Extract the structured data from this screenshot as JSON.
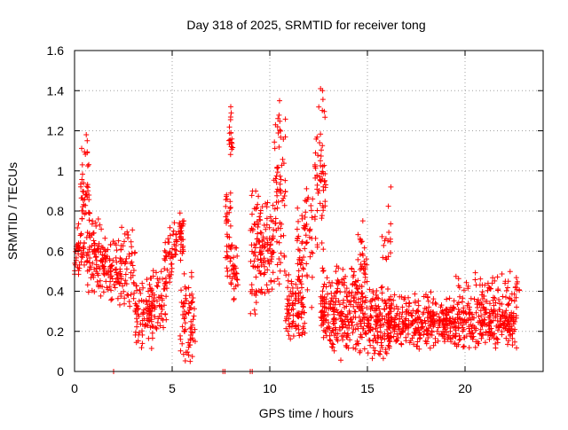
{
  "chart_data": {
    "type": "scatter",
    "title": "Day 318 of 2025, SRMTID for receiver tong",
    "xlabel": "GPS time / hours",
    "ylabel": "SRMTID / TECUs",
    "xlim": [
      0,
      24
    ],
    "ylim": [
      0,
      1.6
    ],
    "x_ticks": [
      0,
      5,
      10,
      15,
      20
    ],
    "y_ticks": [
      0,
      0.2,
      0.4,
      0.6,
      0.8,
      1.0,
      1.2,
      1.4,
      1.6
    ],
    "x_tick_labels": [
      "0",
      "5",
      "10",
      "15",
      "20"
    ],
    "y_tick_labels": [
      "0",
      "0.2",
      "0.4",
      "0.6",
      "0.8",
      "1",
      "1.2",
      "1.4",
      "1.6"
    ],
    "grid": true,
    "marker": "plus",
    "color": "#ff0000",
    "series": [
      {
        "name": "SRMTID",
        "clusters": [
          {
            "x": [
              0.0,
              0.5
            ],
            "y": [
              0.45,
              0.75
            ],
            "n": 40
          },
          {
            "x": [
              0.3,
              0.8
            ],
            "y": [
              0.6,
              1.18
            ],
            "n": 45
          },
          {
            "x": [
              0.6,
              1.4
            ],
            "y": [
              0.35,
              0.8
            ],
            "n": 70
          },
          {
            "x": [
              1.3,
              2.4
            ],
            "y": [
              0.3,
              0.7
            ],
            "n": 90
          },
          {
            "x": [
              2.3,
              3.2
            ],
            "y": [
              0.25,
              0.78
            ],
            "n": 60
          },
          {
            "x": [
              3.1,
              4.0
            ],
            "y": [
              0.05,
              0.5
            ],
            "n": 70
          },
          {
            "x": [
              3.8,
              4.7
            ],
            "y": [
              0.15,
              0.55
            ],
            "n": 70
          },
          {
            "x": [
              4.6,
              5.0
            ],
            "y": [
              0.4,
              0.75
            ],
            "n": 35
          },
          {
            "x": [
              5.0,
              5.6
            ],
            "y": [
              0.5,
              0.8
            ],
            "n": 45
          },
          {
            "x": [
              5.4,
              6.2
            ],
            "y": [
              0.03,
              0.55
            ],
            "n": 70
          },
          {
            "x": [
              7.7,
              8.0
            ],
            "y": [
              0.45,
              0.95
            ],
            "n": 35
          },
          {
            "x": [
              7.9,
              8.1
            ],
            "y": [
              1.0,
              1.33
            ],
            "n": 18
          },
          {
            "x": [
              8.0,
              8.4
            ],
            "y": [
              0.3,
              0.7
            ],
            "n": 30
          },
          {
            "x": [
              9.0,
              9.6
            ],
            "y": [
              0.2,
              1.03
            ],
            "n": 70
          },
          {
            "x": [
              9.5,
              10.2
            ],
            "y": [
              0.3,
              0.9
            ],
            "n": 70
          },
          {
            "x": [
              10.2,
              10.8
            ],
            "y": [
              0.4,
              1.35
            ],
            "n": 70
          },
          {
            "x": [
              10.8,
              11.8
            ],
            "y": [
              0.1,
              0.5
            ],
            "n": 90
          },
          {
            "x": [
              11.4,
              12.2
            ],
            "y": [
              0.3,
              0.95
            ],
            "n": 70
          },
          {
            "x": [
              12.3,
              12.9
            ],
            "y": [
              0.5,
              1.41
            ],
            "n": 60
          },
          {
            "x": [
              12.6,
              14.8
            ],
            "y": [
              0.05,
              0.55
            ],
            "n": 260
          },
          {
            "x": [
              14.5,
              15.0
            ],
            "y": [
              0.3,
              0.78
            ],
            "n": 30
          },
          {
            "x": [
              14.8,
              16.2
            ],
            "y": [
              0.05,
              0.45
            ],
            "n": 140
          },
          {
            "x": [
              15.7,
              16.2
            ],
            "y": [
              0.5,
              0.92
            ],
            "n": 15
          },
          {
            "x": [
              16.0,
              22.7
            ],
            "y": [
              0.1,
              0.4
            ],
            "n": 600
          },
          {
            "x": [
              19.5,
              22.8
            ],
            "y": [
              0.35,
              0.5
            ],
            "n": 50
          }
        ],
        "points": [
          [
            2.0,
            0.0
          ],
          [
            7.6,
            0.0
          ],
          [
            7.7,
            0.0
          ],
          [
            9.0,
            0.0
          ],
          [
            9.1,
            0.0
          ],
          [
            8.0,
            1.32
          ],
          [
            10.5,
            1.35
          ],
          [
            12.6,
            1.41
          ],
          [
            12.7,
            1.4
          ],
          [
            0.6,
            1.18
          ],
          [
            0.65,
            1.15
          ],
          [
            16.2,
            0.92
          ],
          [
            22.5,
            0.2
          ]
        ]
      }
    ]
  }
}
